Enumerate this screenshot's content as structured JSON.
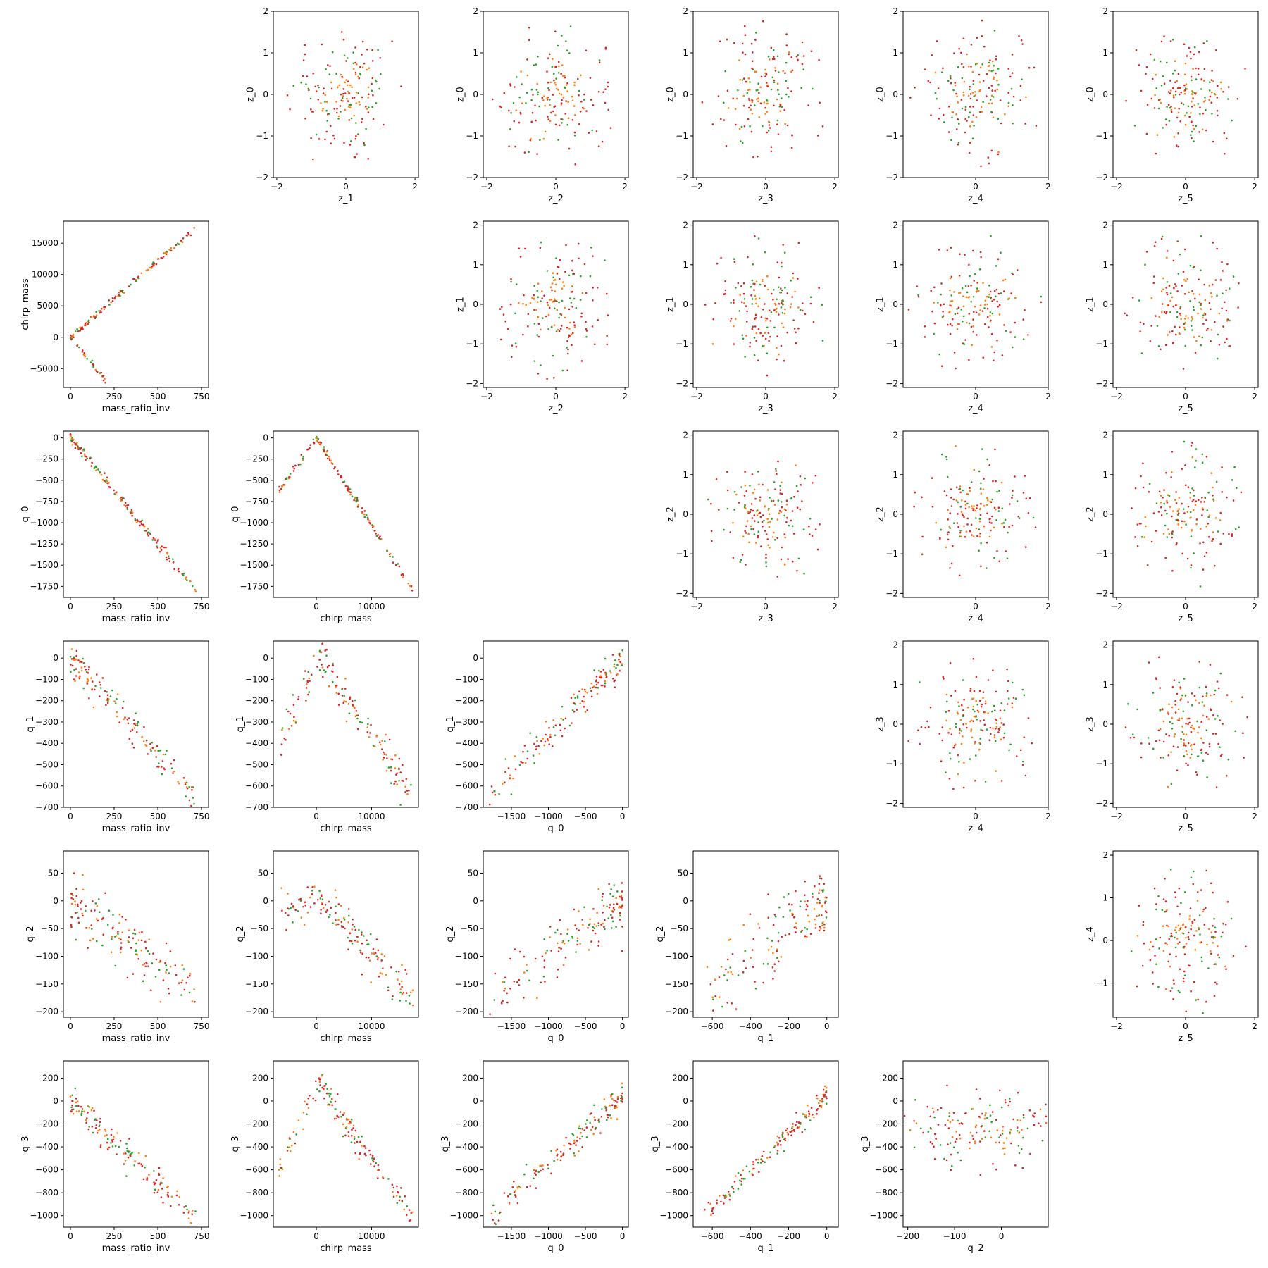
{
  "figure": {
    "type": "pairplot",
    "grid": "6x6 upper/lower triangular scatter matrix, diagonal empty",
    "colors": {
      "red": "#d62728",
      "green": "#2ca02c",
      "orange": "#ff7f0e",
      "axis": "#000000"
    }
  },
  "chart_data": [
    {
      "id": "z0_z1",
      "type": "scatter",
      "xlabel": "z_1",
      "ylabel": "z_0",
      "xlim": [
        -2.1,
        2.1
      ],
      "ylim": [
        -2.0,
        2.0
      ],
      "xticks": [
        -2,
        0,
        2
      ],
      "yticks": [
        -2,
        -1,
        0,
        1,
        2
      ],
      "shape": "blob",
      "params": {
        "cx": 0,
        "cy": 0,
        "r": 1.85
      }
    },
    {
      "id": "z0_z2",
      "type": "scatter",
      "xlabel": "z_2",
      "ylabel": "z_0",
      "xlim": [
        -2.1,
        2.1
      ],
      "ylim": [
        -2.0,
        2.0
      ],
      "xticks": [
        -2,
        0,
        2
      ],
      "yticks": [
        -2,
        -1,
        0,
        1,
        2
      ],
      "shape": "blob",
      "params": {
        "cx": 0,
        "cy": 0,
        "r": 1.85
      }
    },
    {
      "id": "z0_z3",
      "type": "scatter",
      "xlabel": "z_3",
      "ylabel": "z_0",
      "xlim": [
        -2.1,
        2.1
      ],
      "ylim": [
        -2.0,
        2.0
      ],
      "xticks": [
        -2,
        0,
        2
      ],
      "yticks": [
        -2,
        -1,
        0,
        1,
        2
      ],
      "shape": "blob",
      "params": {
        "cx": 0,
        "cy": 0,
        "r": 1.85
      }
    },
    {
      "id": "z0_z4",
      "type": "scatter",
      "xlabel": "z_4",
      "ylabel": "z_0",
      "xlim": [
        -2.0,
        2.0
      ],
      "ylim": [
        -2.0,
        2.0
      ],
      "xticks": [
        0,
        2
      ],
      "yticks": [
        -2,
        -1,
        0,
        1,
        2
      ],
      "shape": "blob",
      "params": {
        "cx": 0,
        "cy": 0,
        "r": 1.85
      }
    },
    {
      "id": "z0_z5",
      "type": "scatter",
      "xlabel": "z_5",
      "ylabel": "z_0",
      "xlim": [
        -2.1,
        2.1
      ],
      "ylim": [
        -2.0,
        2.0
      ],
      "xticks": [
        -2,
        0,
        2
      ],
      "yticks": [
        -2,
        -1,
        0,
        1,
        2
      ],
      "shape": "blob",
      "params": {
        "cx": 0,
        "cy": 0,
        "r": 1.85
      }
    },
    {
      "id": "cm_mri",
      "type": "scatter",
      "xlabel": "mass_ratio_inv",
      "ylabel": "chirp_mass",
      "xlim": [
        -40,
        790
      ],
      "ylim": [
        -8000,
        18500
      ],
      "xticks": [
        0,
        250,
        500,
        750
      ],
      "yticks": [
        -5000,
        0,
        5000,
        10000,
        15000
      ],
      "shape": "vbranch",
      "params": {
        "x0": 0,
        "y0": 0,
        "x1": 720,
        "y1": 17500,
        "x2": 200,
        "y2": -6800,
        "noise": 250
      }
    },
    {
      "id": "z1_z2",
      "type": "scatter",
      "xlabel": "z_2",
      "ylabel": "z_1",
      "xlim": [
        -2.1,
        2.1
      ],
      "ylim": [
        -2.1,
        2.1
      ],
      "xticks": [
        -2,
        0,
        2
      ],
      "yticks": [
        -2,
        -1,
        0,
        1,
        2
      ],
      "shape": "blob",
      "params": {
        "cx": 0,
        "cy": 0,
        "r": 1.9
      }
    },
    {
      "id": "z1_z3",
      "type": "scatter",
      "xlabel": "z_3",
      "ylabel": "z_1",
      "xlim": [
        -2.1,
        2.1
      ],
      "ylim": [
        -2.1,
        2.1
      ],
      "xticks": [
        -2,
        0,
        2
      ],
      "yticks": [
        -2,
        -1,
        0,
        1,
        2
      ],
      "shape": "blob",
      "params": {
        "cx": 0,
        "cy": 0,
        "r": 1.9
      }
    },
    {
      "id": "z1_z4",
      "type": "scatter",
      "xlabel": "z_4",
      "ylabel": "z_1",
      "xlim": [
        -2.0,
        2.0
      ],
      "ylim": [
        -2.1,
        2.1
      ],
      "xticks": [
        0,
        2
      ],
      "yticks": [
        -2,
        -1,
        0,
        1,
        2
      ],
      "shape": "blob",
      "params": {
        "cx": 0,
        "cy": 0,
        "r": 1.9
      }
    },
    {
      "id": "z1_z5",
      "type": "scatter",
      "xlabel": "z_5",
      "ylabel": "z_1",
      "xlim": [
        -2.1,
        2.1
      ],
      "ylim": [
        -2.1,
        2.1
      ],
      "xticks": [
        -2,
        0,
        2
      ],
      "yticks": [
        -2,
        -1,
        0,
        1,
        2
      ],
      "shape": "blob",
      "params": {
        "cx": 0,
        "cy": 0,
        "r": 1.9
      }
    },
    {
      "id": "q0_mri",
      "type": "scatter",
      "xlabel": "mass_ratio_inv",
      "ylabel": "q_0",
      "xlim": [
        -40,
        790
      ],
      "ylim": [
        -1880,
        80
      ],
      "xticks": [
        0,
        250,
        500,
        750
      ],
      "yticks": [
        -1750,
        -1500,
        -1250,
        -1000,
        -750,
        -500,
        -250,
        0
      ],
      "shape": "line",
      "params": {
        "x0": 0,
        "y0": 0,
        "x1": 720,
        "y1": -1800,
        "noise": 30
      }
    },
    {
      "id": "q0_cm",
      "type": "scatter",
      "xlabel": "chirp_mass",
      "ylabel": "q_0",
      "xlim": [
        -7800,
        18500
      ],
      "ylim": [
        -1880,
        80
      ],
      "xticks": [
        0,
        10000
      ],
      "yticks": [
        -1750,
        -1500,
        -1250,
        -1000,
        -750,
        -500,
        -250,
        0
      ],
      "shape": "vbranch",
      "params": {
        "x0": 0,
        "y0": 0,
        "x1": 17500,
        "y1": -1800,
        "x2": -6800,
        "y2": -620,
        "noise": 20
      }
    },
    {
      "id": "z2_z3",
      "type": "scatter",
      "xlabel": "z_3",
      "ylabel": "z_2",
      "xlim": [
        -2.1,
        2.1
      ],
      "ylim": [
        -2.1,
        2.1
      ],
      "xticks": [
        -2,
        0,
        2
      ],
      "yticks": [
        -2,
        -1,
        0,
        1,
        2
      ],
      "shape": "blob",
      "params": {
        "cx": 0,
        "cy": 0,
        "r": 1.9
      }
    },
    {
      "id": "z2_z4",
      "type": "scatter",
      "xlabel": "z_4",
      "ylabel": "z_2",
      "xlim": [
        -2.0,
        2.0
      ],
      "ylim": [
        -2.1,
        2.1
      ],
      "xticks": [
        0,
        2
      ],
      "yticks": [
        -2,
        -1,
        0,
        1,
        2
      ],
      "shape": "blob",
      "params": {
        "cx": 0,
        "cy": 0,
        "r": 1.9
      }
    },
    {
      "id": "z2_z5",
      "type": "scatter",
      "xlabel": "z_5",
      "ylabel": "z_2",
      "xlim": [
        -2.1,
        2.1
      ],
      "ylim": [
        -2.1,
        2.1
      ],
      "xticks": [
        -2,
        0,
        2
      ],
      "yticks": [
        -2,
        -1,
        0,
        1,
        2
      ],
      "shape": "blob",
      "params": {
        "cx": 0,
        "cy": 0,
        "r": 1.9
      }
    },
    {
      "id": "q1_mri",
      "type": "scatter",
      "xlabel": "mass_ratio_inv",
      "ylabel": "q_1",
      "xlim": [
        -40,
        790
      ],
      "ylim": [
        -700,
        80
      ],
      "xticks": [
        0,
        250,
        500,
        750
      ],
      "yticks": [
        -700,
        -600,
        -500,
        -400,
        -300,
        -200,
        -100,
        0
      ],
      "shape": "line",
      "params": {
        "x0": 0,
        "y0": 0,
        "x1": 720,
        "y1": -650,
        "noise": 40
      }
    },
    {
      "id": "q1_cm",
      "type": "scatter",
      "xlabel": "chirp_mass",
      "ylabel": "q_1",
      "xlim": [
        -7800,
        18500
      ],
      "ylim": [
        -700,
        80
      ],
      "xticks": [
        0,
        10000
      ],
      "yticks": [
        -700,
        -600,
        -500,
        -400,
        -300,
        -200,
        -100,
        0
      ],
      "shape": "vbranch",
      "params": {
        "x0": 500,
        "y0": 0,
        "x1": 17500,
        "y1": -650,
        "x2": -6800,
        "y2": -390,
        "noise": 40
      }
    },
    {
      "id": "q1_q0",
      "type": "scatter",
      "xlabel": "q_0",
      "ylabel": "q_1",
      "xlim": [
        -1880,
        80
      ],
      "ylim": [
        -700,
        80
      ],
      "xticks": [
        -1500,
        -1000,
        -500,
        0
      ],
      "yticks": [
        -700,
        -600,
        -500,
        -400,
        -300,
        -200,
        -100,
        0
      ],
      "shape": "line",
      "params": {
        "x0": 0,
        "y0": 0,
        "x1": -1800,
        "y1": -650,
        "noise": 40
      }
    },
    {
      "id": "z3_z4",
      "type": "scatter",
      "xlabel": "z_4",
      "ylabel": "z_3",
      "xlim": [
        -2.0,
        2.0
      ],
      "ylim": [
        -2.1,
        2.1
      ],
      "xticks": [
        0,
        2
      ],
      "yticks": [
        -2,
        -1,
        0,
        1,
        2
      ],
      "shape": "blob",
      "params": {
        "cx": 0,
        "cy": 0,
        "r": 1.9
      }
    },
    {
      "id": "z3_z5",
      "type": "scatter",
      "xlabel": "z_5",
      "ylabel": "z_3",
      "xlim": [
        -2.1,
        2.1
      ],
      "ylim": [
        -2.1,
        2.1
      ],
      "xticks": [
        -2,
        0,
        2
      ],
      "yticks": [
        -2,
        -1,
        0,
        1,
        2
      ],
      "shape": "blob",
      "params": {
        "cx": 0,
        "cy": 0,
        "r": 1.9
      }
    },
    {
      "id": "q2_mri",
      "type": "scatter",
      "xlabel": "mass_ratio_inv",
      "ylabel": "q_2",
      "xlim": [
        -40,
        790
      ],
      "ylim": [
        -210,
        90
      ],
      "xticks": [
        0,
        250,
        500,
        750
      ],
      "yticks": [
        -200,
        -150,
        -100,
        -50,
        0,
        50
      ],
      "shape": "line",
      "params": {
        "x0": 0,
        "y0": 0,
        "x1": 720,
        "y1": -170,
        "noise": 25
      }
    },
    {
      "id": "q2_cm",
      "type": "scatter",
      "xlabel": "chirp_mass",
      "ylabel": "q_2",
      "xlim": [
        -7800,
        18500
      ],
      "ylim": [
        -210,
        90
      ],
      "xticks": [
        0,
        10000
      ],
      "yticks": [
        -200,
        -150,
        -100,
        -50,
        0,
        50
      ],
      "shape": "vbranch",
      "params": {
        "x0": 500,
        "y0": 0,
        "x1": 17500,
        "y1": -170,
        "x2": -6800,
        "y2": -20,
        "noise": 20
      }
    },
    {
      "id": "q2_q0",
      "type": "scatter",
      "xlabel": "q_0",
      "ylabel": "q_2",
      "xlim": [
        -1880,
        80
      ],
      "ylim": [
        -210,
        90
      ],
      "xticks": [
        -1500,
        -1000,
        -500,
        0
      ],
      "yticks": [
        -200,
        -150,
        -100,
        -50,
        0,
        50
      ],
      "shape": "line",
      "params": {
        "x0": 0,
        "y0": 0,
        "x1": -1800,
        "y1": -170,
        "noise": 25
      }
    },
    {
      "id": "q2_q1",
      "type": "scatter",
      "xlabel": "q_1",
      "ylabel": "q_2",
      "xlim": [
        -700,
        60
      ],
      "ylim": [
        -210,
        90
      ],
      "xticks": [
        -600,
        -400,
        -200,
        0
      ],
      "yticks": [
        -200,
        -150,
        -100,
        -50,
        0,
        50
      ],
      "shape": "line",
      "params": {
        "x0": 0,
        "y0": 0,
        "x1": -650,
        "y1": -170,
        "noise": 35
      }
    },
    {
      "id": "z4_z5",
      "type": "scatter",
      "xlabel": "z_5",
      "ylabel": "z_4",
      "xlim": [
        -2.1,
        2.1
      ],
      "ylim": [
        -1.8,
        2.1
      ],
      "xticks": [
        -2,
        0,
        2
      ],
      "yticks": [
        -1,
        0,
        1,
        2
      ],
      "shape": "blob",
      "params": {
        "cx": 0,
        "cy": 0,
        "r": 1.8
      }
    },
    {
      "id": "q3_mri",
      "type": "scatter",
      "xlabel": "mass_ratio_inv",
      "ylabel": "q_3",
      "xlim": [
        -40,
        790
      ],
      "ylim": [
        -1100,
        350
      ],
      "xticks": [
        0,
        250,
        500,
        750
      ],
      "yticks": [
        -1000,
        -800,
        -600,
        -400,
        -200,
        0,
        200
      ],
      "shape": "line",
      "params": {
        "x0": 0,
        "y0": 0,
        "x1": 720,
        "y1": -1020,
        "noise": 70
      }
    },
    {
      "id": "q3_cm",
      "type": "scatter",
      "xlabel": "chirp_mass",
      "ylabel": "q_3",
      "xlim": [
        -7800,
        18500
      ],
      "ylim": [
        -1100,
        350
      ],
      "xticks": [
        0,
        10000
      ],
      "yticks": [
        -1000,
        -800,
        -600,
        -400,
        -200,
        0,
        200
      ],
      "shape": "vbranch",
      "params": {
        "x0": 500,
        "y0": 150,
        "x1": 17500,
        "y1": -1020,
        "x2": -6800,
        "y2": -610,
        "noise": 60
      }
    },
    {
      "id": "q3_q0",
      "type": "scatter",
      "xlabel": "q_0",
      "ylabel": "q_3",
      "xlim": [
        -1880,
        80
      ],
      "ylim": [
        -1100,
        350
      ],
      "xticks": [
        -1500,
        -1000,
        -500,
        0
      ],
      "yticks": [
        -1000,
        -800,
        -600,
        -400,
        -200,
        0,
        200
      ],
      "shape": "line",
      "params": {
        "x0": 0,
        "y0": 50,
        "x1": -1800,
        "y1": -1020,
        "noise": 70
      }
    },
    {
      "id": "q3_q1",
      "type": "scatter",
      "xlabel": "q_1",
      "ylabel": "q_3",
      "xlim": [
        -700,
        60
      ],
      "ylim": [
        -1100,
        350
      ],
      "xticks": [
        -600,
        -400,
        -200,
        0
      ],
      "yticks": [
        -1000,
        -800,
        -600,
        -400,
        -200,
        0,
        200
      ],
      "shape": "line",
      "params": {
        "x0": 0,
        "y0": 50,
        "x1": -650,
        "y1": -1020,
        "noise": 45
      }
    },
    {
      "id": "q3_q2",
      "type": "scatter",
      "xlabel": "q_2",
      "ylabel": "q_3",
      "xlim": [
        -210,
        100
      ],
      "ylim": [
        -1100,
        350
      ],
      "xticks": [
        -200,
        -100,
        0
      ],
      "yticks": [
        -1000,
        -800,
        -600,
        -400,
        -200,
        0,
        200
      ],
      "shape": "blob",
      "params": {
        "cx": -40,
        "cy": -250,
        "r": 260,
        "ry": 420
      }
    }
  ]
}
